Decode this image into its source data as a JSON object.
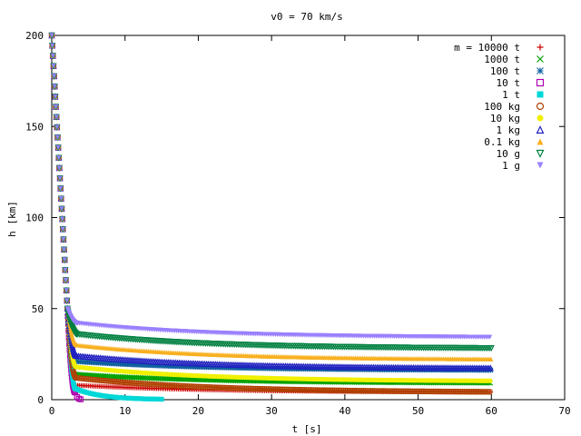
{
  "chart_data": {
    "type": "scatter",
    "title": "v0 = 70 km/s",
    "xlabel": "t [s]",
    "ylabel": "h [km]",
    "xlim": [
      0,
      70
    ],
    "ylim": [
      0,
      200
    ],
    "xticks": [
      "0",
      "10",
      "20",
      "30",
      "40",
      "50",
      "60",
      "70"
    ],
    "yticks": [
      "0",
      "50",
      "100",
      "150",
      "200"
    ],
    "legend_position": "top-right",
    "series": [
      {
        "name": "m = 10000 t",
        "color": "#cc0000",
        "marker": "plus",
        "t_end": 60,
        "h_floor": 4,
        "h_knee": 8
      },
      {
        "name": "1000 t",
        "color": "#00a000",
        "marker": "cross",
        "t_end": 60,
        "h_floor": 9,
        "h_knee": 14
      },
      {
        "name": "100 t",
        "color": "#1060a0",
        "marker": "star",
        "t_end": 60,
        "h_floor": 16,
        "h_knee": 21
      },
      {
        "name": "10 t",
        "color": "#b000b0",
        "marker": "square",
        "t_end": 4,
        "h_floor": 0,
        "h_knee": 4
      },
      {
        "name": "1 t",
        "color": "#00d8d8",
        "marker": "filled-square",
        "t_end": 15,
        "h_floor": 0,
        "h_knee": 6
      },
      {
        "name": "100 kg",
        "color": "#b04000",
        "marker": "circle",
        "t_end": 60,
        "h_floor": 4,
        "h_knee": 12
      },
      {
        "name": "10 kg",
        "color": "#f0f000",
        "marker": "filled-circle",
        "t_end": 60,
        "h_floor": 10,
        "h_knee": 18
      },
      {
        "name": "1 kg",
        "color": "#2020c0",
        "marker": "triangle",
        "t_end": 60,
        "h_floor": 17,
        "h_knee": 24
      },
      {
        "name": "0.1 kg",
        "color": "#f8b020",
        "marker": "filled-triangle",
        "t_end": 60,
        "h_floor": 22,
        "h_knee": 30
      },
      {
        "name": "10 g",
        "color": "#008040",
        "marker": "inverted-triangle",
        "t_end": 60,
        "h_floor": 28,
        "h_knee": 36
      },
      {
        "name": "1 g",
        "color": "#9a80ff",
        "marker": "filled-inverted-triangle",
        "t_end": 60,
        "h_floor": 34,
        "h_knee": 42
      }
    ]
  }
}
